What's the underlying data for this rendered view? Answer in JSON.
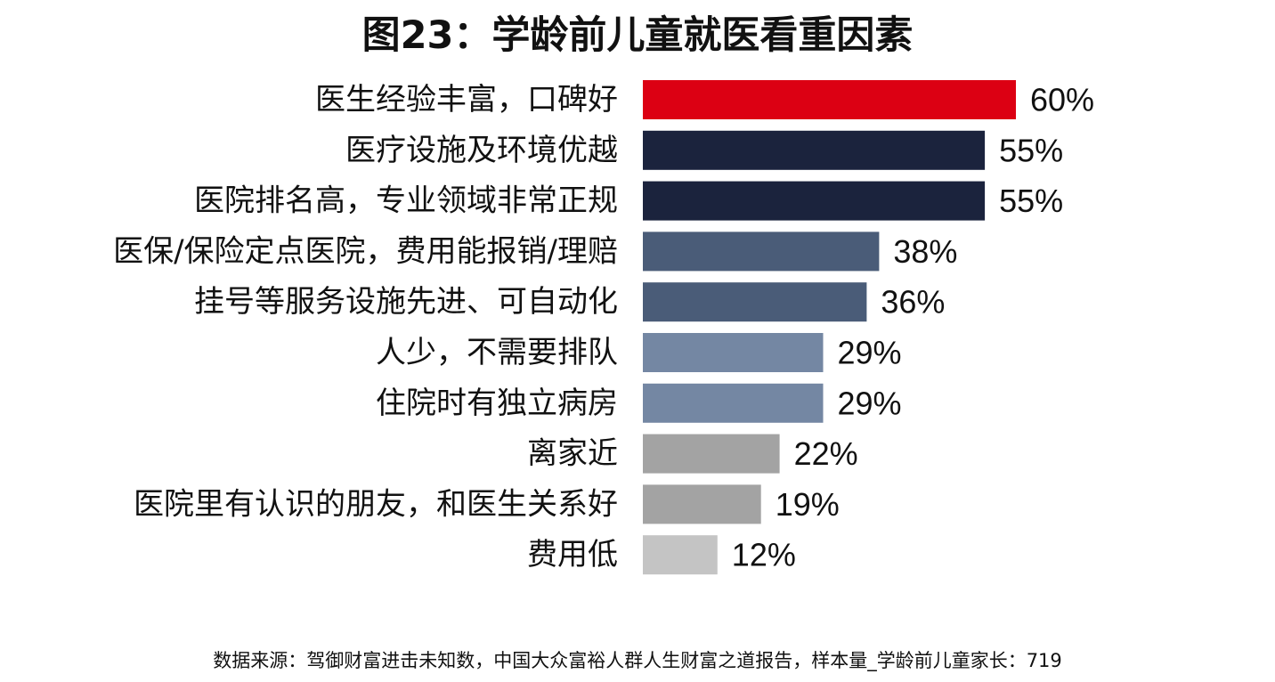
{
  "chart_data": {
    "type": "bar",
    "orientation": "horizontal",
    "title": "图23：学龄前儿童就医看重因素",
    "categories": [
      "医生经验丰富，口碑好",
      "医疗设施及环境优越",
      "医院排名高，专业领域非常正规",
      "医保/保险定点医院，费用能报销/理赔",
      "挂号等服务设施先进、可自动化",
      "人少，不需要排队",
      "住院时有独立病房",
      "离家近",
      "医院里有认识的朋友，和医生关系好",
      "费用低"
    ],
    "values": [
      60,
      55,
      55,
      38,
      36,
      29,
      29,
      22,
      19,
      12
    ],
    "value_labels": [
      "60%",
      "55%",
      "55%",
      "38%",
      "36%",
      "29%",
      "29%",
      "22%",
      "19%",
      "12%"
    ],
    "bar_colors": [
      "#dc0013",
      "#1b233d",
      "#1b233d",
      "#4a5c78",
      "#4a5c78",
      "#7487a3",
      "#7487a3",
      "#a3a3a3",
      "#a3a3a3",
      "#c4c4c4"
    ],
    "unit": "%",
    "xlim": [
      0,
      100
    ],
    "grid": false,
    "legend": "none"
  },
  "footer": {
    "source": "数据来源：驾御财富进击未知数，中国大众富裕人群人生财富之道报告，样本量_学龄前儿童家长：719"
  }
}
